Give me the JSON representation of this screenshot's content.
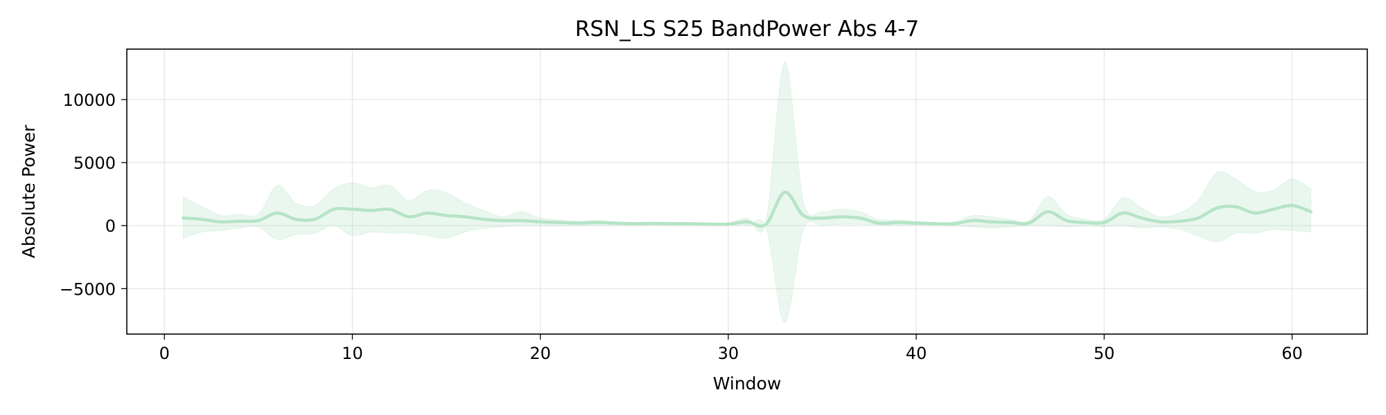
{
  "chart_data": {
    "type": "line",
    "title": "RSN_LS S25 BandPower Abs 4-7",
    "xlabel": "Window",
    "ylabel": "Absolute Power",
    "xlim": [
      -2,
      64
    ],
    "ylim": [
      -8600,
      14000
    ],
    "xticks": [
      0,
      10,
      20,
      30,
      40,
      50,
      60
    ],
    "xtick_labels": [
      "0",
      "10",
      "20",
      "30",
      "40",
      "50",
      "60"
    ],
    "yticks": [
      -5000,
      0,
      5000,
      10000
    ],
    "ytick_labels": [
      "−5000",
      "0",
      "5000",
      "10000"
    ],
    "grid": true,
    "legend": "none",
    "series": [
      {
        "color": "#b5e4c6",
        "x": [
          1,
          2,
          3,
          4,
          5,
          6,
          7,
          8,
          9,
          10,
          11,
          12,
          13,
          14,
          15,
          16,
          17,
          18,
          19,
          20,
          21,
          22,
          23,
          24,
          25,
          26,
          27,
          28,
          29,
          30,
          31,
          32,
          33,
          34,
          35,
          36,
          37,
          38,
          39,
          40,
          41,
          42,
          43,
          44,
          45,
          46,
          47,
          48,
          49,
          50,
          51,
          52,
          53,
          54,
          55,
          56,
          57,
          58,
          59,
          60,
          61
        ],
        "y": [
          600,
          500,
          300,
          350,
          400,
          1000,
          500,
          500,
          1300,
          1300,
          1200,
          1300,
          700,
          1000,
          800,
          700,
          500,
          400,
          400,
          300,
          250,
          200,
          250,
          200,
          150,
          180,
          150,
          150,
          120,
          120,
          300,
          100,
          2650,
          800,
          600,
          700,
          600,
          200,
          250,
          200,
          150,
          150,
          400,
          300,
          250,
          200,
          1100,
          400,
          250,
          250,
          1000,
          600,
          300,
          350,
          600,
          1400,
          1500,
          1000,
          1300,
          1600,
          1100
        ],
        "lower": [
          -1000,
          -500,
          -400,
          -200,
          -100,
          -1100,
          -700,
          -600,
          0,
          -800,
          -500,
          -600,
          -600,
          -800,
          -1000,
          -500,
          -200,
          -100,
          0,
          0,
          0,
          0,
          50,
          50,
          50,
          50,
          50,
          50,
          50,
          50,
          0,
          -100,
          -7700,
          -300,
          0,
          100,
          100,
          50,
          50,
          50,
          50,
          0,
          -100,
          -200,
          -100,
          0,
          0,
          -100,
          0,
          -100,
          0,
          -200,
          -100,
          -300,
          -800,
          -1300,
          -600,
          -600,
          -300,
          -400,
          -500
        ],
        "upper": [
          2300,
          1500,
          800,
          900,
          900,
          3200,
          1800,
          1600,
          2900,
          3400,
          3000,
          3200,
          2000,
          2800,
          2600,
          1800,
          1200,
          700,
          1100,
          600,
          450,
          350,
          400,
          300,
          250,
          280,
          250,
          250,
          200,
          200,
          600,
          300,
          13000,
          1900,
          1100,
          1300,
          1100,
          500,
          450,
          350,
          250,
          300,
          800,
          700,
          500,
          400,
          2300,
          900,
          500,
          500,
          2200,
          1400,
          700,
          1000,
          2000,
          4200,
          3700,
          2700,
          2800,
          3700,
          2900
        ]
      }
    ]
  }
}
